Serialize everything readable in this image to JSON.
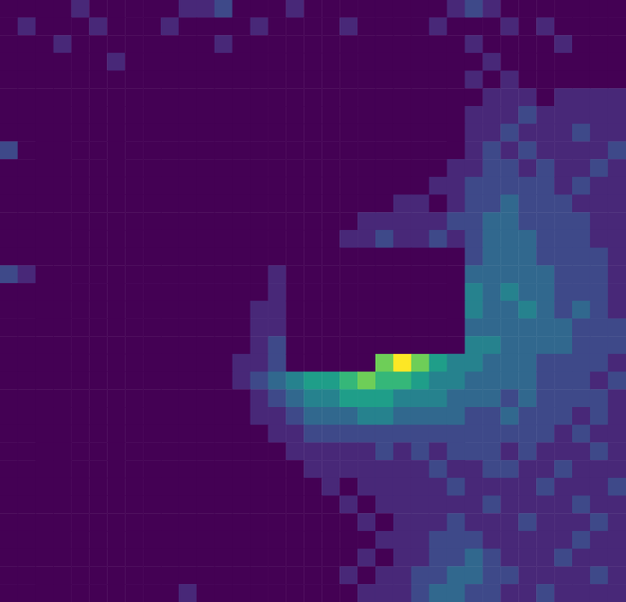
{
  "chart_data": {
    "type": "heatmap",
    "tick_labels": false,
    "clim": [
      1,
      10
    ],
    "cells": [
      [
        1,
        1,
        0,
        1,
        2,
        1,
        1,
        1,
        0,
        1,
        2,
        2,
        3,
        1,
        1,
        1,
        2,
        1,
        1,
        1,
        1,
        0,
        1,
        1,
        1,
        2,
        3,
        2,
        1,
        1,
        0,
        0,
        0,
        0,
        0
      ],
      [
        1,
        2,
        1,
        1,
        1,
        2,
        1,
        1,
        1,
        2,
        1,
        1,
        1,
        1,
        2,
        1,
        1,
        1,
        1,
        2,
        1,
        1,
        1,
        1,
        2,
        1,
        1,
        1,
        2,
        1,
        2,
        1,
        0,
        0,
        0
      ],
      [
        1,
        1,
        1,
        2,
        1,
        1,
        1,
        1,
        1,
        1,
        1,
        1,
        2,
        1,
        1,
        1,
        1,
        1,
        1,
        1,
        1,
        1,
        1,
        1,
        1,
        1,
        2,
        1,
        1,
        1,
        1,
        2,
        0,
        0,
        0
      ],
      [
        1,
        1,
        0,
        1,
        1,
        1,
        2,
        1,
        1,
        1,
        1,
        0,
        1,
        1,
        1,
        1,
        1,
        1,
        1,
        1,
        1,
        1,
        0,
        1,
        1,
        1,
        1,
        2,
        1,
        1,
        1,
        1,
        0,
        0,
        0
      ],
      [
        1,
        0,
        1,
        1,
        1,
        1,
        1,
        1,
        0,
        1,
        1,
        1,
        1,
        1,
        1,
        1,
        1,
        1,
        1,
        0,
        1,
        1,
        1,
        1,
        1,
        1,
        2,
        1,
        2,
        1,
        1,
        1,
        0,
        0,
        0
      ],
      [
        0,
        1,
        1,
        1,
        0,
        1,
        1,
        0,
        1,
        1,
        1,
        0,
        1,
        1,
        1,
        1,
        0,
        1,
        1,
        1,
        1,
        0,
        1,
        1,
        1,
        1,
        1,
        2,
        2,
        2,
        1,
        2,
        2,
        2,
        2
      ],
      [
        1,
        0,
        1,
        0,
        1,
        0,
        1,
        1,
        0,
        1,
        0,
        1,
        1,
        0,
        1,
        1,
        1,
        0,
        1,
        1,
        1,
        1,
        1,
        0,
        1,
        1,
        2,
        2,
        2,
        3,
        2,
        2,
        2,
        2,
        2
      ],
      [
        0,
        1,
        0,
        0,
        1,
        1,
        0,
        1,
        1,
        0,
        1,
        1,
        0,
        1,
        1,
        0,
        1,
        1,
        1,
        0,
        1,
        1,
        1,
        1,
        1,
        1,
        2,
        2,
        3,
        2,
        2,
        2,
        3,
        2,
        2
      ],
      [
        3,
        0,
        0,
        1,
        0,
        1,
        1,
        0,
        1,
        1,
        0,
        1,
        1,
        1,
        0,
        1,
        1,
        0,
        1,
        1,
        1,
        0,
        1,
        1,
        1,
        1,
        2,
        3,
        2,
        3,
        2,
        2,
        2,
        2,
        3
      ],
      [
        0,
        0,
        0,
        0,
        0,
        1,
        0,
        1,
        0,
        1,
        1,
        0,
        1,
        1,
        1,
        0,
        1,
        1,
        1,
        1,
        0,
        1,
        1,
        1,
        1,
        2,
        2,
        3,
        3,
        2,
        3,
        2,
        2,
        3,
        2
      ],
      [
        0,
        0,
        0,
        0,
        0,
        0,
        1,
        0,
        1,
        0,
        1,
        1,
        0,
        1,
        0,
        1,
        1,
        1,
        0,
        1,
        1,
        1,
        1,
        1,
        2,
        2,
        3,
        3,
        3,
        3,
        3,
        2,
        3,
        2,
        2
      ],
      [
        0,
        0,
        0,
        0,
        0,
        1,
        0,
        0,
        1,
        1,
        0,
        1,
        1,
        0,
        1,
        1,
        1,
        0,
        1,
        1,
        1,
        1,
        2,
        2,
        1,
        2,
        3,
        3,
        4,
        3,
        3,
        3,
        2,
        2,
        2
      ],
      [
        0,
        0,
        0,
        0,
        1,
        0,
        0,
        1,
        0,
        1,
        1,
        0,
        1,
        1,
        0,
        1,
        1,
        1,
        1,
        1,
        2,
        2,
        2,
        2,
        2,
        3,
        3,
        4,
        4,
        3,
        3,
        3,
        3,
        2,
        2
      ],
      [
        0,
        0,
        0,
        0,
        0,
        0,
        1,
        0,
        1,
        0,
        1,
        1,
        0,
        1,
        1,
        1,
        1,
        1,
        1,
        2,
        2,
        3,
        2,
        2,
        3,
        2,
        3,
        4,
        4,
        4,
        3,
        3,
        3,
        2,
        2
      ],
      [
        0,
        0,
        0,
        0,
        0,
        1,
        0,
        1,
        0,
        1,
        1,
        0,
        1,
        1,
        1,
        1,
        0,
        0,
        0,
        0,
        0,
        0,
        0,
        0,
        0,
        0,
        3,
        4,
        4,
        4,
        3,
        3,
        3,
        3,
        2
      ],
      [
        3,
        2,
        1,
        0,
        0,
        0,
        1,
        0,
        1,
        1,
        0,
        1,
        1,
        1,
        1,
        2,
        0,
        0,
        0,
        0,
        0,
        0,
        0,
        0,
        0,
        0,
        4,
        4,
        4,
        4,
        4,
        3,
        3,
        3,
        2
      ],
      [
        1,
        1,
        0,
        1,
        0,
        1,
        0,
        0,
        1,
        0,
        1,
        1,
        0,
        1,
        1,
        2,
        0,
        0,
        0,
        0,
        0,
        0,
        0,
        0,
        0,
        0,
        5,
        4,
        5,
        4,
        4,
        3,
        3,
        3,
        2
      ],
      [
        1,
        0,
        1,
        0,
        0,
        0,
        1,
        0,
        0,
        1,
        0,
        1,
        1,
        1,
        2,
        2,
        0,
        0,
        0,
        0,
        0,
        0,
        0,
        0,
        0,
        0,
        5,
        4,
        4,
        5,
        4,
        3,
        4,
        3,
        2
      ],
      [
        1,
        1,
        0,
        0,
        1,
        0,
        0,
        1,
        0,
        0,
        1,
        0,
        1,
        1,
        2,
        2,
        0,
        0,
        0,
        0,
        0,
        0,
        0,
        0,
        0,
        0,
        4,
        4,
        4,
        4,
        4,
        4,
        3,
        3,
        3
      ],
      [
        1,
        0,
        1,
        1,
        0,
        1,
        0,
        1,
        0,
        1,
        1,
        0,
        1,
        1,
        2,
        3,
        0,
        0,
        0,
        0,
        0,
        0,
        0,
        0,
        0,
        0,
        5,
        5,
        4,
        4,
        4,
        4,
        3,
        3,
        3
      ],
      [
        1,
        0,
        0,
        1,
        0,
        1,
        1,
        0,
        1,
        0,
        1,
        1,
        1,
        2,
        2,
        3,
        0,
        0,
        0,
        0,
        0,
        8,
        10,
        8,
        6,
        5,
        5,
        4,
        4,
        4,
        3,
        3,
        3,
        3,
        2
      ],
      [
        1,
        1,
        0,
        0,
        1,
        0,
        1,
        0,
        1,
        1,
        0,
        1,
        1,
        2,
        3,
        4,
        5,
        6,
        6,
        7,
        8,
        7,
        7,
        6,
        5,
        5,
        4,
        4,
        4,
        4,
        3,
        3,
        3,
        2,
        3
      ],
      [
        0,
        1,
        0,
        1,
        0,
        1,
        0,
        1,
        0,
        1,
        1,
        0,
        1,
        1,
        2,
        3,
        4,
        5,
        5,
        6,
        6,
        6,
        5,
        5,
        5,
        4,
        4,
        4,
        3,
        4,
        3,
        3,
        3,
        3,
        2
      ],
      [
        1,
        0,
        0,
        1,
        0,
        0,
        1,
        0,
        1,
        0,
        1,
        1,
        0,
        1,
        2,
        2,
        3,
        4,
        4,
        4,
        5,
        5,
        4,
        4,
        4,
        4,
        3,
        3,
        4,
        3,
        3,
        3,
        2,
        3,
        2
      ],
      [
        0,
        1,
        0,
        0,
        1,
        0,
        0,
        1,
        0,
        1,
        0,
        1,
        1,
        1,
        1,
        2,
        2,
        3,
        3,
        3,
        3,
        3,
        3,
        3,
        3,
        3,
        3,
        3,
        3,
        3,
        3,
        2,
        3,
        2,
        2
      ],
      [
        1,
        0,
        1,
        0,
        0,
        1,
        0,
        0,
        1,
        0,
        1,
        0,
        1,
        0,
        1,
        1,
        2,
        2,
        2,
        2,
        2,
        3,
        2,
        3,
        2,
        3,
        3,
        3,
        2,
        3,
        2,
        2,
        2,
        3,
        2
      ],
      [
        0,
        1,
        0,
        1,
        0,
        0,
        1,
        0,
        0,
        1,
        0,
        1,
        0,
        1,
        1,
        1,
        1,
        2,
        2,
        2,
        2,
        2,
        2,
        2,
        3,
        2,
        2,
        3,
        3,
        2,
        2,
        3,
        2,
        2,
        2
      ],
      [
        1,
        0,
        0,
        0,
        1,
        0,
        1,
        1,
        0,
        0,
        1,
        0,
        1,
        0,
        1,
        1,
        1,
        1,
        2,
        1,
        2,
        2,
        2,
        2,
        2,
        3,
        2,
        2,
        2,
        2,
        3,
        2,
        2,
        2,
        3
      ],
      [
        0,
        0,
        1,
        0,
        0,
        1,
        0,
        0,
        1,
        0,
        0,
        1,
        0,
        1,
        0,
        1,
        1,
        1,
        1,
        2,
        1,
        2,
        2,
        2,
        2,
        2,
        2,
        3,
        2,
        2,
        2,
        2,
        3,
        2,
        2
      ],
      [
        1,
        0,
        0,
        1,
        0,
        0,
        1,
        0,
        0,
        1,
        1,
        0,
        1,
        0,
        1,
        1,
        0,
        1,
        1,
        1,
        2,
        1,
        2,
        2,
        2,
        3,
        2,
        2,
        2,
        3,
        2,
        2,
        2,
        3,
        2
      ],
      [
        0,
        1,
        0,
        0,
        0,
        1,
        0,
        0,
        1,
        0,
        1,
        1,
        0,
        1,
        1,
        0,
        1,
        1,
        1,
        1,
        1,
        2,
        2,
        2,
        3,
        3,
        3,
        2,
        2,
        2,
        2,
        2,
        3,
        2,
        2
      ],
      [
        1,
        0,
        0,
        1,
        0,
        0,
        0,
        1,
        0,
        1,
        1,
        0,
        1,
        1,
        0,
        1,
        1,
        0,
        1,
        1,
        2,
        1,
        2,
        2,
        3,
        3,
        4,
        3,
        2,
        2,
        2,
        3,
        2,
        2,
        2
      ],
      [
        0,
        0,
        1,
        0,
        0,
        1,
        0,
        0,
        1,
        1,
        1,
        1,
        1,
        0,
        1,
        1,
        1,
        1,
        1,
        2,
        1,
        2,
        2,
        3,
        3,
        4,
        4,
        3,
        3,
        2,
        2,
        2,
        2,
        3,
        2
      ],
      [
        1,
        1,
        0,
        0,
        1,
        0,
        0,
        0,
        1,
        1,
        2,
        1,
        1,
        1,
        1,
        1,
        0,
        1,
        1,
        1,
        2,
        2,
        2,
        3,
        4,
        4,
        3,
        3,
        2,
        2,
        3,
        2,
        2,
        2,
        2
      ]
    ]
  }
}
